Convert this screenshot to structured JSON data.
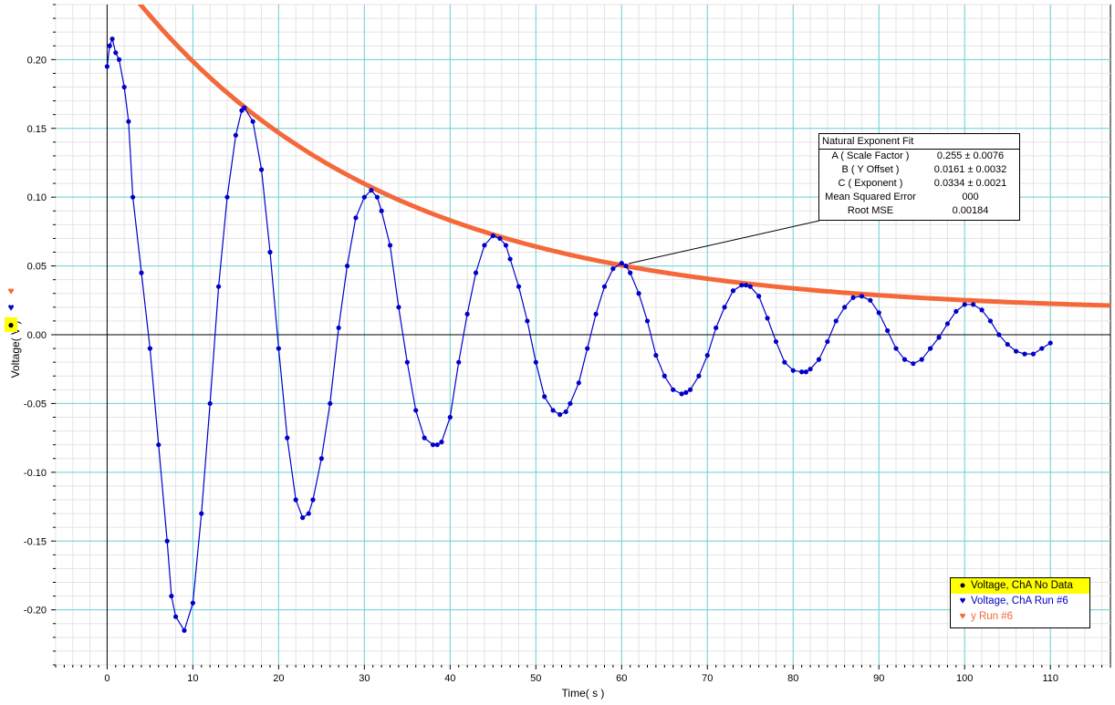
{
  "chart_data": {
    "type": "scatter",
    "xlabel": "Time( s )",
    "ylabel": "Voltage( V )",
    "xlim": [
      -6,
      117
    ],
    "ylim": [
      -0.24,
      0.24
    ],
    "x_ticks": [
      0,
      10,
      20,
      30,
      40,
      50,
      60,
      70,
      80,
      90,
      100,
      110
    ],
    "x_tick_labels": [
      "0",
      "10",
      "20",
      "30",
      "40",
      "50",
      "60",
      "70",
      "80",
      "90",
      "100",
      "110"
    ],
    "y_ticks": [
      -0.2,
      -0.15,
      -0.1,
      -0.05,
      0,
      0.05,
      0.1,
      0.15,
      0.2
    ],
    "y_tick_labels": [
      "-0.20",
      "-0.15",
      "-0.10",
      "-0.05",
      "0.00",
      "0.05",
      "0.10",
      "0.15",
      "0.20"
    ],
    "grid": true,
    "legend_position": "bottom-right",
    "series": [
      {
        "name": "Voltage, ChA No Data",
        "color": "#000000",
        "marker": "dot",
        "points": []
      },
      {
        "name": "Voltage, ChA Run #6",
        "color": "#0000cc",
        "marker": "heart",
        "x": [
          0,
          0.3,
          0.6,
          1,
          1.4,
          2,
          2.5,
          3,
          4,
          5,
          6,
          7,
          7.5,
          8,
          9,
          10,
          11,
          12,
          13,
          14,
          15,
          15.7,
          16,
          17,
          18,
          19,
          20,
          21,
          22,
          22.8,
          23.5,
          24,
          25,
          26,
          27,
          28,
          29,
          30,
          30.8,
          31.5,
          32,
          33,
          34,
          35,
          36,
          37,
          38,
          38.5,
          39,
          40,
          41,
          42,
          43,
          44,
          45,
          45.8,
          46.5,
          47,
          48,
          49,
          50,
          51,
          52,
          52.8,
          53.5,
          54,
          55,
          56,
          57,
          58,
          59,
          60,
          60.5,
          61,
          62,
          63,
          64,
          65,
          66,
          67,
          67.5,
          68,
          69,
          70,
          71,
          72,
          73,
          74,
          74.5,
          75,
          76,
          77,
          78,
          79,
          80,
          81,
          81.5,
          82,
          83,
          84,
          85,
          86,
          87,
          88,
          89,
          90,
          91,
          92,
          93,
          94,
          95,
          96,
          97,
          98,
          99,
          100,
          101,
          102,
          103,
          104,
          105,
          106,
          107,
          108,
          109,
          110
        ],
        "y": [
          0.195,
          0.21,
          0.215,
          0.205,
          0.2,
          0.18,
          0.155,
          0.1,
          0.045,
          -0.01,
          -0.08,
          -0.15,
          -0.19,
          -0.205,
          -0.215,
          -0.195,
          -0.13,
          -0.05,
          0.035,
          0.1,
          0.145,
          0.163,
          0.165,
          0.155,
          0.12,
          0.06,
          -0.01,
          -0.075,
          -0.12,
          -0.133,
          -0.13,
          -0.12,
          -0.09,
          -0.05,
          0.005,
          0.05,
          0.085,
          0.1,
          0.105,
          0.1,
          0.09,
          0.065,
          0.02,
          -0.02,
          -0.055,
          -0.075,
          -0.08,
          -0.08,
          -0.078,
          -0.06,
          -0.02,
          0.015,
          0.045,
          0.065,
          0.072,
          0.07,
          0.065,
          0.055,
          0.035,
          0.01,
          -0.02,
          -0.045,
          -0.055,
          -0.058,
          -0.056,
          -0.05,
          -0.035,
          -0.01,
          0.015,
          0.035,
          0.048,
          0.052,
          0.05,
          0.045,
          0.03,
          0.01,
          -0.015,
          -0.03,
          -0.04,
          -0.043,
          -0.042,
          -0.04,
          -0.03,
          -0.015,
          0.005,
          0.02,
          0.032,
          0.036,
          0.036,
          0.035,
          0.028,
          0.012,
          -0.005,
          -0.02,
          -0.026,
          -0.027,
          -0.027,
          -0.025,
          -0.018,
          -0.005,
          0.01,
          0.02,
          0.027,
          0.028,
          0.025,
          0.016,
          0.003,
          -0.01,
          -0.018,
          -0.021,
          -0.018,
          -0.01,
          -0.002,
          0.008,
          0.017,
          0.022,
          0.022,
          0.018,
          0.01,
          0,
          -0.007,
          -0.012,
          -0.014,
          -0.014,
          -0.01,
          -0.006
        ]
      },
      {
        "name": "y Run #6",
        "color": "#f4683a",
        "marker": "heart",
        "fit": "natural_exponent",
        "A": 0.255,
        "B": 0.0161,
        "C": 0.0334,
        "x_range": [
          3,
          117
        ]
      }
    ]
  },
  "fit_box": {
    "title": "Natural Exponent Fit",
    "rows": [
      {
        "label": "A ( Scale Factor )",
        "value": "0.255 ± 0.0076"
      },
      {
        "label": "B ( Y Offset )",
        "value": "0.0161 ± 0.0032"
      },
      {
        "label": "C ( Exponent )",
        "value": "0.0334 ± 0.0021"
      },
      {
        "label": "Mean Squared Error",
        "value": "000"
      },
      {
        "label": "Root MSE",
        "value": "0.00184"
      }
    ]
  },
  "legend": {
    "items": [
      {
        "label": "Voltage, ChA No Data",
        "color": "#000000",
        "symbol": "●",
        "highlight": true
      },
      {
        "label": "Voltage, ChA Run #6",
        "color": "#0000cc",
        "symbol": "♥",
        "highlight": false
      },
      {
        "label": "y Run #6",
        "color": "#f4683a",
        "symbol": "♥",
        "highlight": false
      }
    ]
  },
  "y_axis_icons": [
    {
      "symbol": "♥",
      "color": "#f4683a",
      "highlight": false
    },
    {
      "symbol": "♥",
      "color": "#0000cc",
      "highlight": false
    },
    {
      "symbol": "●",
      "color": "#000000",
      "highlight": true
    }
  ],
  "colors": {
    "major_grid": "#6fd3d6",
    "minor_grid": "#e4e4e4",
    "fit_curve": "#f4683a",
    "data": "#0000cc"
  }
}
